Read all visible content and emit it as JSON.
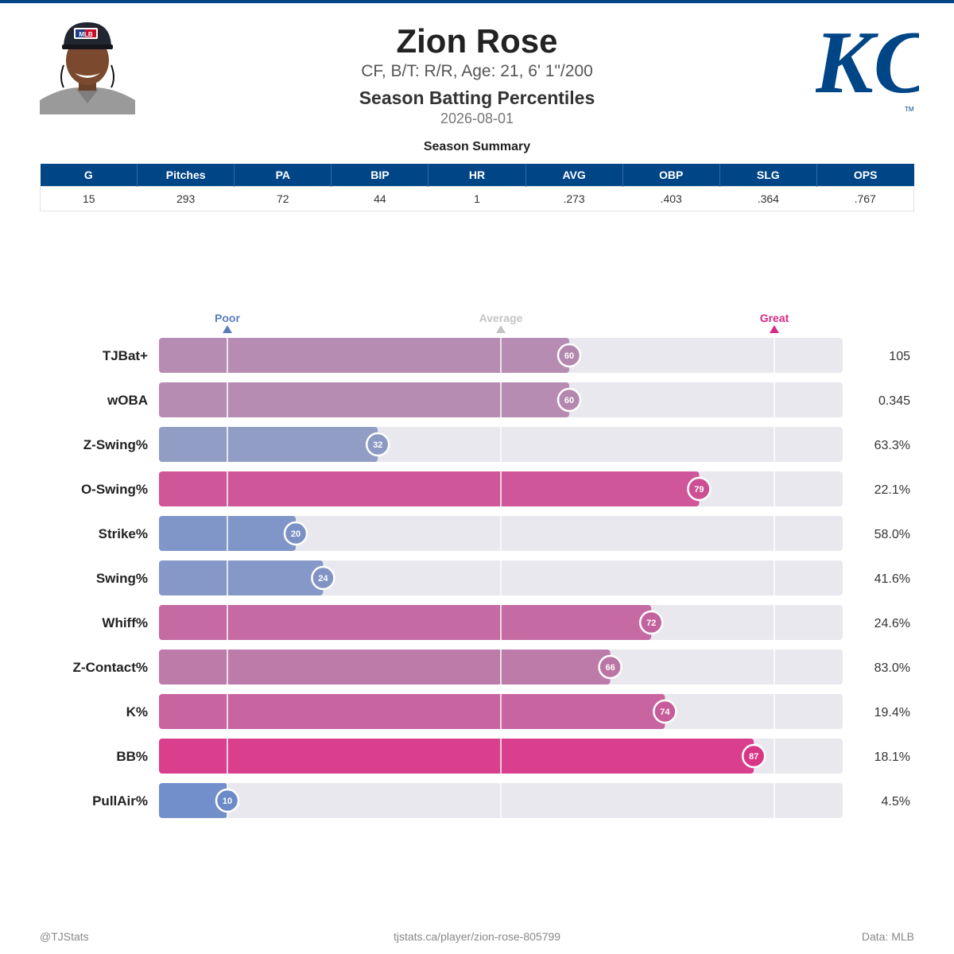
{
  "header": {
    "player_name": "Zion Rose",
    "bio": "CF, B/T: R/R, Age: 21, 6' 1\"/200",
    "subtitle": "Season Batting Percentiles",
    "date": "2026-08-01"
  },
  "summary": {
    "title": "Season Summary",
    "columns": [
      "G",
      "Pitches",
      "PA",
      "BIP",
      "HR",
      "AVG",
      "OBP",
      "SLG",
      "OPS"
    ],
    "values": [
      "15",
      "293",
      "72",
      "44",
      "1",
      ".273",
      ".403",
      ".364",
      ".767"
    ]
  },
  "chart_data": {
    "type": "bar",
    "orientation": "horizontal",
    "categories": [
      "TJBat+",
      "wOBA",
      "Z-Swing%",
      "O-Swing%",
      "Strike%",
      "Swing%",
      "Whiff%",
      "Z-Contact%",
      "K%",
      "BB%",
      "PullAir%"
    ],
    "percentiles": [
      60,
      60,
      32,
      79,
      20,
      24,
      72,
      66,
      74,
      87,
      10
    ],
    "stat_values": [
      "105",
      "0.345",
      "63.3%",
      "22.1%",
      "58.0%",
      "41.6%",
      "24.6%",
      "83.0%",
      "19.4%",
      "18.1%",
      "4.5%"
    ],
    "xlim": [
      0,
      100
    ],
    "reference_lines": [
      {
        "label": "Poor",
        "value": 10,
        "color": "#5b7dbf"
      },
      {
        "label": "Average",
        "value": 50,
        "color": "#c4c4c4"
      },
      {
        "label": "Great",
        "value": 90,
        "color": "#d62b84"
      }
    ],
    "colors": {
      "low": "#6d8ac8",
      "mid": "#a5a5bd",
      "high": "#dc2d82",
      "track": "#e8e8ee"
    }
  },
  "footer": {
    "left": "@TJStats",
    "center": "tjstats.ca/player/zion-rose-805799",
    "right": "Data: MLB"
  },
  "logo": {
    "text": "KC",
    "trademark": "TM",
    "color": "#004687"
  },
  "headshot": {
    "cap_logo": "MLB"
  }
}
